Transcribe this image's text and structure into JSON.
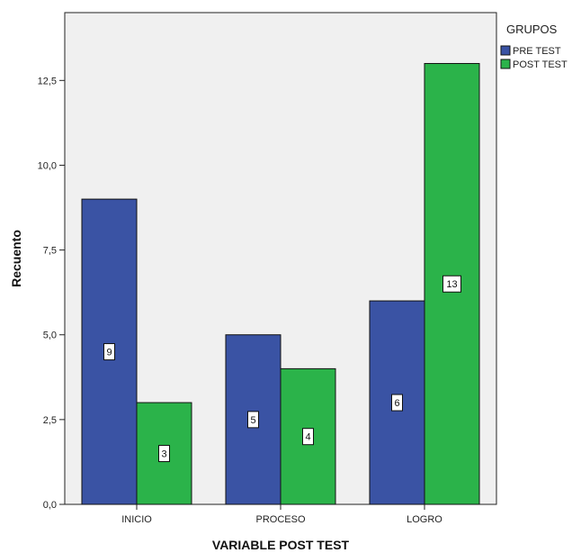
{
  "chart_data": {
    "type": "bar",
    "categories": [
      "INICIO",
      "PROCESO",
      "LOGRO"
    ],
    "series": [
      {
        "name": "PRE TEST",
        "values": [
          9,
          5,
          6
        ],
        "color": "#3a53a4"
      },
      {
        "name": "POST TEST",
        "values": [
          3,
          4,
          13
        ],
        "color": "#2bb34a"
      }
    ],
    "title": "",
    "xlabel": "VARIABLE POST TEST",
    "ylabel": "Recuento",
    "ylim": [
      0,
      14.5
    ],
    "yticks": [
      0,
      2.5,
      5,
      7.5,
      10,
      12.5
    ],
    "ytick_labels": [
      "0,0",
      "2,5",
      "5,0",
      "7,5",
      "10,0",
      "12,5"
    ],
    "legend_title": "GRUPOS",
    "legend_position": "top-right",
    "data_labels": true,
    "grid": false,
    "plot_background": "#f0f0f0"
  }
}
